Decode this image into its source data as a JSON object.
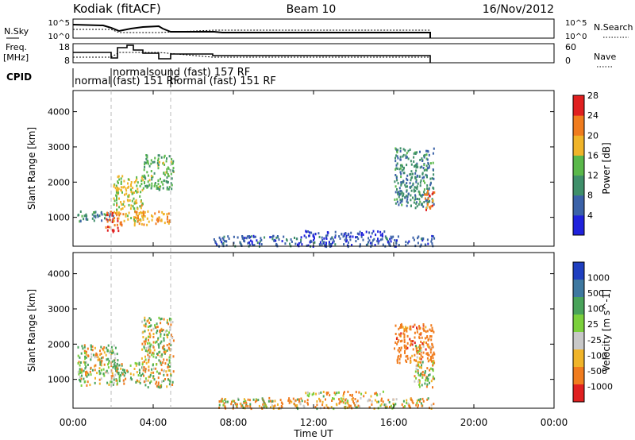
{
  "header": {
    "station": "Kodiak (fitACF)",
    "beam": "Beam 10",
    "date": "16/Nov/2012"
  },
  "noise_panel": {
    "left_label": "N.Sky",
    "right_label": "N.Search",
    "left_ticks": [
      "10^5",
      "10^0"
    ],
    "right_ticks": [
      "10^5",
      "10^0"
    ]
  },
  "freq_panel": {
    "left_label_1": "Freq.",
    "left_label_2": "[MHz]",
    "right_label": "Nave",
    "left_ticks": [
      "18",
      "8"
    ],
    "right_ticks": [
      "60",
      "0"
    ]
  },
  "cpid": {
    "label": "CPID",
    "modes": [
      "normal",
      "normalsound (fast) 157 RF",
      "(fast) 151 RF",
      "normal (fast) 151 RF"
    ]
  },
  "x_axis": {
    "label": "Time UT",
    "ticks": [
      "00:00",
      "04:00",
      "08:00",
      "12:00",
      "16:00",
      "20:00",
      "00:00"
    ]
  },
  "y_axis": {
    "label": "Slant Range [km]",
    "ticks": [
      "1000",
      "2000",
      "3000",
      "4000"
    ]
  },
  "power_colorbar": {
    "title": "Power [dB]",
    "ticks": [
      "4",
      "8",
      "12",
      "16",
      "20",
      "24",
      "28"
    ],
    "colors": [
      "#1f22dc",
      "#3b62a8",
      "#3f8f6a",
      "#5ab84a",
      "#f0b429",
      "#f07c1e",
      "#e02020"
    ]
  },
  "velocity_colorbar": {
    "title": "Velocity [m s^-1]",
    "ticks": [
      "1000",
      "500",
      "100",
      "25",
      "-25",
      "-100",
      "-500",
      "-1000"
    ],
    "colors": [
      "#1f3fc0",
      "#3e78a0",
      "#49a35a",
      "#7bd03c",
      "#c8c8c8",
      "#f0b429",
      "#f07c1e",
      "#e02020"
    ]
  },
  "chart_data": [
    {
      "type": "heatmap",
      "title": "Power [dB]",
      "xlabel": "Time UT",
      "ylabel": "Slant Range [km]",
      "xlim": [
        0,
        24
      ],
      "ylim": [
        180,
        4600
      ],
      "clim": [
        0,
        30
      ],
      "regions": [
        {
          "t_start": 0.2,
          "t_end": 2.0,
          "range_start": 900,
          "range_end": 1200,
          "level": 10
        },
        {
          "t_start": 1.6,
          "t_end": 2.4,
          "range_start": 600,
          "range_end": 1200,
          "level": 26
        },
        {
          "t_start": 2.0,
          "t_end": 3.5,
          "range_start": 900,
          "range_end": 2200,
          "level": 18
        },
        {
          "t_start": 3.5,
          "t_end": 5.0,
          "range_start": 1800,
          "range_end": 2800,
          "level": 14
        },
        {
          "t_start": 3.0,
          "t_end": 4.8,
          "range_start": 800,
          "range_end": 1200,
          "level": 22
        },
        {
          "t_start": 7.0,
          "t_end": 18.0,
          "range_start": 200,
          "range_end": 500,
          "level": 6
        },
        {
          "t_start": 11.5,
          "t_end": 15.5,
          "range_start": 500,
          "range_end": 650,
          "level": 4
        },
        {
          "t_start": 16.0,
          "t_end": 18.0,
          "range_start": 1300,
          "range_end": 3000,
          "level": 10
        },
        {
          "t_start": 17.5,
          "t_end": 18.0,
          "range_start": 1200,
          "range_end": 1800,
          "level": 24
        }
      ]
    },
    {
      "type": "heatmap",
      "title": "Velocity [m s^-1]",
      "xlabel": "Time UT",
      "ylabel": "Slant Range [km]",
      "xlim": [
        0,
        24
      ],
      "ylim": [
        180,
        4600
      ],
      "clim": [
        -1000,
        1000
      ],
      "regions": [
        {
          "t_start": 0.2,
          "t_end": 2.2,
          "range_start": 850,
          "range_end": 2000,
          "level": 0
        },
        {
          "t_start": 2.0,
          "t_end": 3.5,
          "range_start": 900,
          "range_end": 1500,
          "level": 80
        },
        {
          "t_start": 3.4,
          "t_end": 5.0,
          "range_start": 800,
          "range_end": 2800,
          "level": 0
        },
        {
          "t_start": 7.0,
          "t_end": 18.0,
          "range_start": 200,
          "range_end": 500,
          "level": -60
        },
        {
          "t_start": 11.5,
          "t_end": 15.5,
          "range_start": 550,
          "range_end": 680,
          "level": -120
        },
        {
          "t_start": 16.0,
          "t_end": 18.0,
          "range_start": 1500,
          "range_end": 2600,
          "level": -300
        },
        {
          "t_start": 17.0,
          "t_end": 18.0,
          "range_start": 800,
          "range_end": 2000,
          "level": 0
        }
      ]
    }
  ]
}
